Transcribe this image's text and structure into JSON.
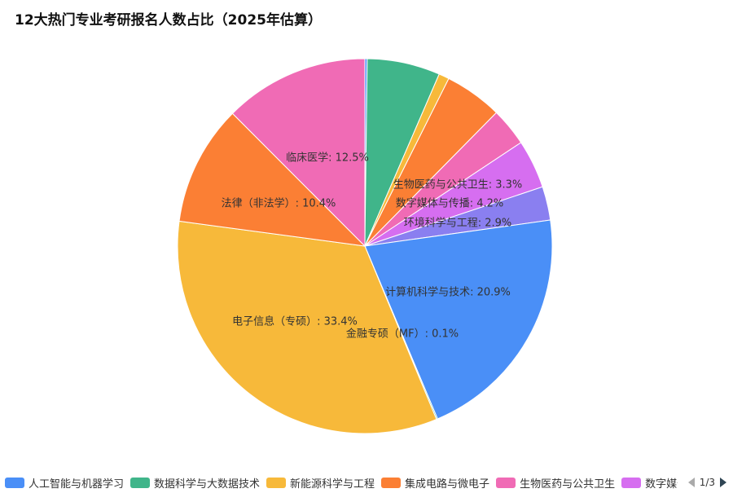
{
  "chart_data": {
    "type": "pie",
    "title": "12大热门专业考研报名人数占比（2025年估算）",
    "series": [
      {
        "name": "人工智能与机器学习",
        "value": 0.2,
        "color": "#4a8ff7",
        "label": ""
      },
      {
        "name": "数据科学与大数据技术",
        "value": 6.3,
        "color": "#40b58a",
        "label": ""
      },
      {
        "name": "新能源科学与工程",
        "value": 0.9,
        "color": "#f7b93a",
        "label": ""
      },
      {
        "name": "集成电路与微电子",
        "value": 5.0,
        "color": "#fb7f34",
        "label": ""
      },
      {
        "name": "生物医药与公共卫生",
        "value": 3.3,
        "color": "#f06bb5",
        "label": "生物医药与公共卫生: 3.3%"
      },
      {
        "name": "数字媒体与传播",
        "value": 4.2,
        "color": "#d66ef0",
        "label": "数字媒体与传播: 4.2%"
      },
      {
        "name": "环境科学与工程",
        "value": 2.9,
        "color": "#8a7ff0",
        "label": "环境科学与工程: 2.9%"
      },
      {
        "name": "计算机科学与技术",
        "value": 20.9,
        "color": "#4a8ff7",
        "label": "计算机科学与技术: 20.9%"
      },
      {
        "name": "金融专硕（MF）",
        "value": 0.1,
        "color": "#40b58a",
        "label": "金融专硕（MF）: 0.1%"
      },
      {
        "name": "电子信息（专硕）",
        "value": 33.4,
        "color": "#f7b93a",
        "label": "电子信息（专硕）: 33.4%"
      },
      {
        "name": "法律（非法学）",
        "value": 10.4,
        "color": "#fb7f34",
        "label": "法律（非法学）: 10.4%"
      },
      {
        "name": "临床医学",
        "value": 12.5,
        "color": "#f06bb5",
        "label": "临床医学: 12.5%"
      }
    ],
    "legend": {
      "placement": "bottom",
      "visible_items": [
        "人工智能与机器学习",
        "数据科学与大数据技术",
        "新能源科学与工程",
        "集成电路与微电子",
        "生物医药与公共卫生",
        "数字媒体与传播"
      ],
      "page": "1/3"
    }
  }
}
